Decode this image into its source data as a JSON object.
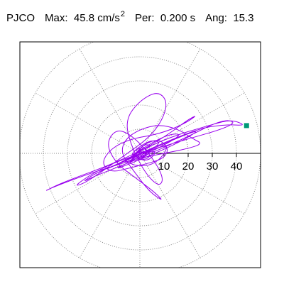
{
  "header": {
    "station": "PJCO",
    "max_label": "Max:",
    "max_value": "45.8 cm/s",
    "max_unit_exp": "2",
    "per_label": "Per:",
    "per_value": "0.200 s",
    "ang_label": "Ang:",
    "ang_value": "15.3"
  },
  "colors": {
    "trace": "#9900ee",
    "marker": "#009977",
    "grid": "#888888",
    "axis": "#000000",
    "frame": "#000000"
  },
  "chart_data": {
    "type": "scatter",
    "style": "polar particle-motion hodogram",
    "title": "",
    "xlabel": "",
    "ylabel": "",
    "r_ticks": [
      10,
      20,
      30,
      40
    ],
    "r_max": 50,
    "grid": true,
    "grid_angle_step_deg": 30,
    "max_value": 45.8,
    "max_angle_deg": 15.3,
    "peak_point": [
      44.2,
      11.5
    ],
    "trace_points": [
      [
        0,
        0
      ],
      [
        2,
        1
      ],
      [
        -1,
        2
      ],
      [
        1,
        -2
      ],
      [
        4,
        0
      ],
      [
        -3,
        1
      ],
      [
        2,
        3
      ],
      [
        5,
        -2
      ],
      [
        -2,
        -3
      ],
      [
        1,
        4
      ],
      [
        6,
        3
      ],
      [
        -4,
        0
      ],
      [
        3,
        -4
      ],
      [
        8,
        2
      ],
      [
        -6,
        -2
      ],
      [
        4,
        6
      ],
      [
        10,
        4
      ],
      [
        -8,
        -4
      ],
      [
        6,
        -6
      ],
      [
        14,
        6
      ],
      [
        -12,
        -7
      ],
      [
        10,
        8
      ],
      [
        20,
        8
      ],
      [
        -18,
        -10
      ],
      [
        16,
        4
      ],
      [
        28,
        12
      ],
      [
        -26,
        -12
      ],
      [
        22,
        10
      ],
      [
        36,
        12
      ],
      [
        44.2,
        11.5
      ],
      [
        38,
        14
      ],
      [
        30,
        12
      ],
      [
        10,
        6
      ],
      [
        -10,
        -4
      ],
      [
        -32,
        -12
      ],
      [
        -40,
        -16
      ],
      [
        -36,
        -14
      ],
      [
        -20,
        -8
      ],
      [
        0,
        -2
      ],
      [
        18,
        6
      ],
      [
        34,
        14
      ],
      [
        40,
        13
      ],
      [
        34,
        10
      ],
      [
        20,
        6
      ],
      [
        0,
        0
      ],
      [
        -16,
        -6
      ],
      [
        -28,
        -14
      ],
      [
        -22,
        -12
      ],
      [
        -8,
        -2
      ],
      [
        6,
        8
      ],
      [
        12,
        20
      ],
      [
        8,
        26
      ],
      [
        0,
        22
      ],
      [
        -6,
        14
      ],
      [
        -4,
        4
      ],
      [
        2,
        -8
      ],
      [
        8,
        -14
      ],
      [
        10,
        -10
      ],
      [
        4,
        0
      ],
      [
        -4,
        8
      ],
      [
        -10,
        10
      ],
      [
        -14,
        4
      ],
      [
        -10,
        -4
      ],
      [
        -2,
        -10
      ],
      [
        6,
        -16
      ],
      [
        10,
        -20
      ],
      [
        4,
        -16
      ],
      [
        -2,
        -8
      ],
      [
        -8,
        0
      ],
      [
        -6,
        6
      ],
      [
        0,
        10
      ],
      [
        8,
        12
      ],
      [
        16,
        10
      ],
      [
        22,
        6
      ],
      [
        26,
        4
      ],
      [
        20,
        2
      ],
      [
        10,
        0
      ],
      [
        0,
        -2
      ],
      [
        -10,
        -6
      ],
      [
        -20,
        -10
      ],
      [
        -24,
        -12
      ],
      [
        -18,
        -8
      ],
      [
        -8,
        -4
      ],
      [
        2,
        2
      ],
      [
        12,
        8
      ],
      [
        20,
        14
      ],
      [
        24,
        16
      ],
      [
        18,
        12
      ],
      [
        8,
        8
      ],
      [
        -4,
        6
      ],
      [
        -12,
        2
      ],
      [
        -16,
        -4
      ],
      [
        -12,
        -8
      ],
      [
        -4,
        -6
      ],
      [
        4,
        -4
      ],
      [
        10,
        -2
      ],
      [
        12,
        2
      ],
      [
        8,
        6
      ],
      [
        2,
        4
      ],
      [
        -2,
        0
      ],
      [
        0,
        -2
      ],
      [
        3,
        -1
      ],
      [
        1,
        1
      ],
      [
        -1,
        0
      ]
    ]
  }
}
